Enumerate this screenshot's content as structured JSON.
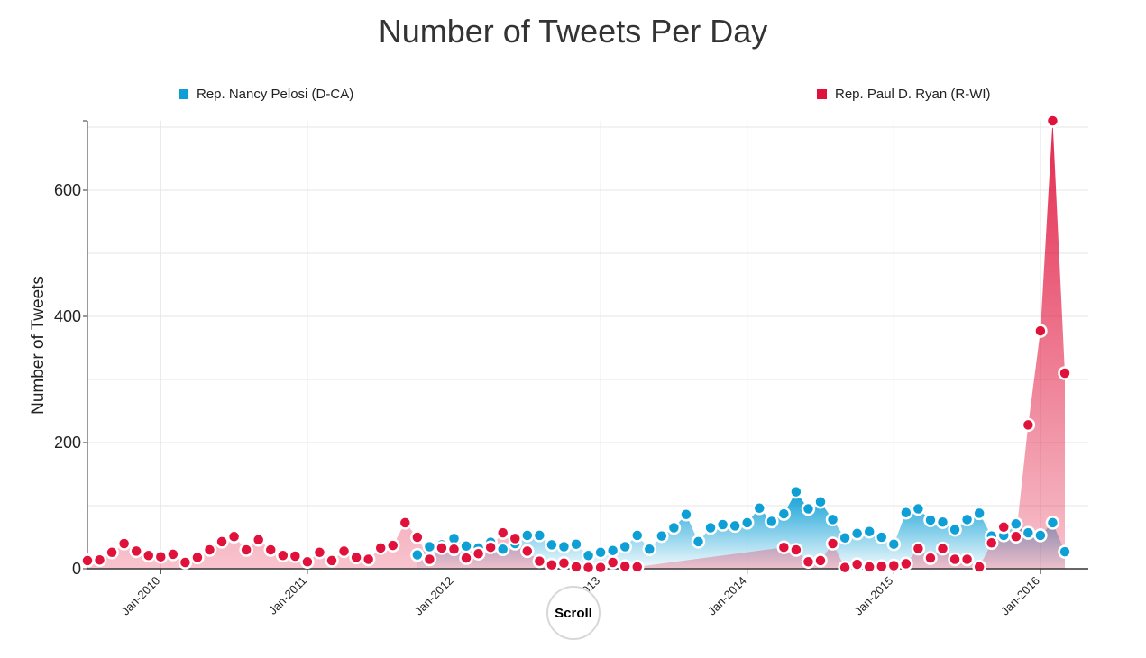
{
  "chart_data": {
    "type": "area",
    "title": "Number of Tweets Per Day",
    "ylabel": "Number of Tweets",
    "xlabel": "",
    "ylim": [
      0,
      710
    ],
    "yticks": [
      0,
      200,
      400,
      600
    ],
    "xlim": [
      "2009-07",
      "2016-01"
    ],
    "xticks": [
      {
        "label": "Jan-2010",
        "date": "2010-01"
      },
      {
        "label": "Jan-2011",
        "date": "2011-01"
      },
      {
        "label": "Jan-2012",
        "date": "2012-01"
      },
      {
        "label": "Jan-2013",
        "date": "2013-01"
      },
      {
        "label": "Jan-2014",
        "date": "2014-01"
      },
      {
        "label": "Jan-2015",
        "date": "2015-01"
      },
      {
        "label": "Jan-2016",
        "date": "2016-01"
      }
    ],
    "grid": true,
    "legend": "top",
    "series": [
      {
        "name": "Rep. Nancy Pelosi (D-CA)",
        "color": "#0e9fd6",
        "points": [
          {
            "x": "2011-10",
            "y": 22
          },
          {
            "x": "2011-11",
            "y": 35
          },
          {
            "x": "2011-12",
            "y": 38
          },
          {
            "x": "2012-01",
            "y": 48
          },
          {
            "x": "2012-02",
            "y": 36
          },
          {
            "x": "2012-03",
            "y": 33
          },
          {
            "x": "2012-04",
            "y": 42
          },
          {
            "x": "2012-05",
            "y": 31
          },
          {
            "x": "2012-06",
            "y": 40
          },
          {
            "x": "2012-07",
            "y": 53
          },
          {
            "x": "2012-08",
            "y": 53
          },
          {
            "x": "2012-09",
            "y": 38
          },
          {
            "x": "2012-10",
            "y": 35
          },
          {
            "x": "2012-11",
            "y": 39
          },
          {
            "x": "2012-12",
            "y": 21
          },
          {
            "x": "2013-01",
            "y": 26
          },
          {
            "x": "2013-02",
            "y": 29
          },
          {
            "x": "2013-03",
            "y": 35
          },
          {
            "x": "2013-04",
            "y": 53
          },
          {
            "x": "2013-05",
            "y": 31
          },
          {
            "x": "2013-06",
            "y": 52
          },
          {
            "x": "2013-07",
            "y": 65
          },
          {
            "x": "2013-08",
            "y": 86
          },
          {
            "x": "2013-09",
            "y": 43
          },
          {
            "x": "2013-10",
            "y": 65
          },
          {
            "x": "2013-11",
            "y": 70
          },
          {
            "x": "2013-12",
            "y": 68
          },
          {
            "x": "2014-01",
            "y": 73
          },
          {
            "x": "2014-02",
            "y": 96
          },
          {
            "x": "2014-03",
            "y": 75
          },
          {
            "x": "2014-04",
            "y": 87
          },
          {
            "x": "2014-05",
            "y": 122
          },
          {
            "x": "2014-06",
            "y": 95
          },
          {
            "x": "2014-07",
            "y": 106
          },
          {
            "x": "2014-08",
            "y": 78
          },
          {
            "x": "2014-09",
            "y": 49
          },
          {
            "x": "2014-10",
            "y": 56
          },
          {
            "x": "2014-11",
            "y": 59
          },
          {
            "x": "2014-12",
            "y": 50
          },
          {
            "x": "2015-01",
            "y": 39
          },
          {
            "x": "2015-02",
            "y": 89
          },
          {
            "x": "2015-03",
            "y": 95
          },
          {
            "x": "2015-04",
            "y": 77
          },
          {
            "x": "2015-05",
            "y": 74
          },
          {
            "x": "2015-06",
            "y": 62
          },
          {
            "x": "2015-07",
            "y": 78
          },
          {
            "x": "2015-08",
            "y": 88
          },
          {
            "x": "2015-09",
            "y": 52
          },
          {
            "x": "2015-10",
            "y": 53
          },
          {
            "x": "2015-11",
            "y": 71
          },
          {
            "x": "2015-12",
            "y": 57
          },
          {
            "x": "2016-01",
            "y": 53
          },
          {
            "x": "2016-02",
            "y": 73
          },
          {
            "x": "2016-03",
            "y": 27
          }
        ]
      },
      {
        "name": "Rep. Paul D. Ryan (R-WI)",
        "color": "#e0113a",
        "points": [
          {
            "x": "2009-07",
            "y": 13
          },
          {
            "x": "2009-08",
            "y": 14
          },
          {
            "x": "2009-09",
            "y": 26
          },
          {
            "x": "2009-10",
            "y": 40
          },
          {
            "x": "2009-11",
            "y": 28
          },
          {
            "x": "2009-12",
            "y": 21
          },
          {
            "x": "2010-01",
            "y": 19
          },
          {
            "x": "2010-02",
            "y": 23
          },
          {
            "x": "2010-03",
            "y": 10
          },
          {
            "x": "2010-04",
            "y": 18
          },
          {
            "x": "2010-05",
            "y": 30
          },
          {
            "x": "2010-06",
            "y": 43
          },
          {
            "x": "2010-07",
            "y": 51
          },
          {
            "x": "2010-08",
            "y": 30
          },
          {
            "x": "2010-09",
            "y": 46
          },
          {
            "x": "2010-10",
            "y": 30
          },
          {
            "x": "2010-11",
            "y": 21
          },
          {
            "x": "2010-12",
            "y": 20
          },
          {
            "x": "2011-01",
            "y": 11
          },
          {
            "x": "2011-02",
            "y": 26
          },
          {
            "x": "2011-03",
            "y": 13
          },
          {
            "x": "2011-04",
            "y": 28
          },
          {
            "x": "2011-05",
            "y": 18
          },
          {
            "x": "2011-06",
            "y": 15
          },
          {
            "x": "2011-07",
            "y": 33
          },
          {
            "x": "2011-08",
            "y": 37
          },
          {
            "x": "2011-09",
            "y": 73
          },
          {
            "x": "2011-10",
            "y": 50
          },
          {
            "x": "2011-11",
            "y": 15
          },
          {
            "x": "2011-12",
            "y": 33
          },
          {
            "x": "2012-01",
            "y": 31
          },
          {
            "x": "2012-02",
            "y": 17
          },
          {
            "x": "2012-03",
            "y": 24
          },
          {
            "x": "2012-04",
            "y": 34
          },
          {
            "x": "2012-05",
            "y": 57
          },
          {
            "x": "2012-06",
            "y": 48
          },
          {
            "x": "2012-07",
            "y": 28
          },
          {
            "x": "2012-08",
            "y": 12
          },
          {
            "x": "2012-09",
            "y": 6
          },
          {
            "x": "2012-10",
            "y": 9
          },
          {
            "x": "2012-11",
            "y": 3
          },
          {
            "x": "2012-12",
            "y": 2
          },
          {
            "x": "2013-01",
            "y": 2
          },
          {
            "x": "2013-02",
            "y": 10
          },
          {
            "x": "2013-03",
            "y": 4
          },
          {
            "x": "2013-04",
            "y": 3
          },
          {
            "x": "2014-04",
            "y": 34
          },
          {
            "x": "2014-05",
            "y": 30
          },
          {
            "x": "2014-06",
            "y": 11
          },
          {
            "x": "2014-07",
            "y": 13
          },
          {
            "x": "2014-08",
            "y": 40
          },
          {
            "x": "2014-09",
            "y": 2
          },
          {
            "x": "2014-10",
            "y": 7
          },
          {
            "x": "2014-11",
            "y": 3
          },
          {
            "x": "2014-12",
            "y": 4
          },
          {
            "x": "2015-01",
            "y": 5
          },
          {
            "x": "2015-02",
            "y": 8
          },
          {
            "x": "2015-03",
            "y": 32
          },
          {
            "x": "2015-04",
            "y": 17
          },
          {
            "x": "2015-05",
            "y": 32
          },
          {
            "x": "2015-06",
            "y": 15
          },
          {
            "x": "2015-07",
            "y": 15
          },
          {
            "x": "2015-08",
            "y": 3
          },
          {
            "x": "2015-09",
            "y": 41
          },
          {
            "x": "2015-10",
            "y": 66
          },
          {
            "x": "2015-11",
            "y": 51
          },
          {
            "x": "2015-12",
            "y": 228
          },
          {
            "x": "2016-01",
            "y": 377
          },
          {
            "x": "2016-02",
            "y": 710
          },
          {
            "x": "2016-03",
            "y": 310
          }
        ]
      }
    ]
  },
  "controls": {
    "scroll_label": "Scroll"
  }
}
